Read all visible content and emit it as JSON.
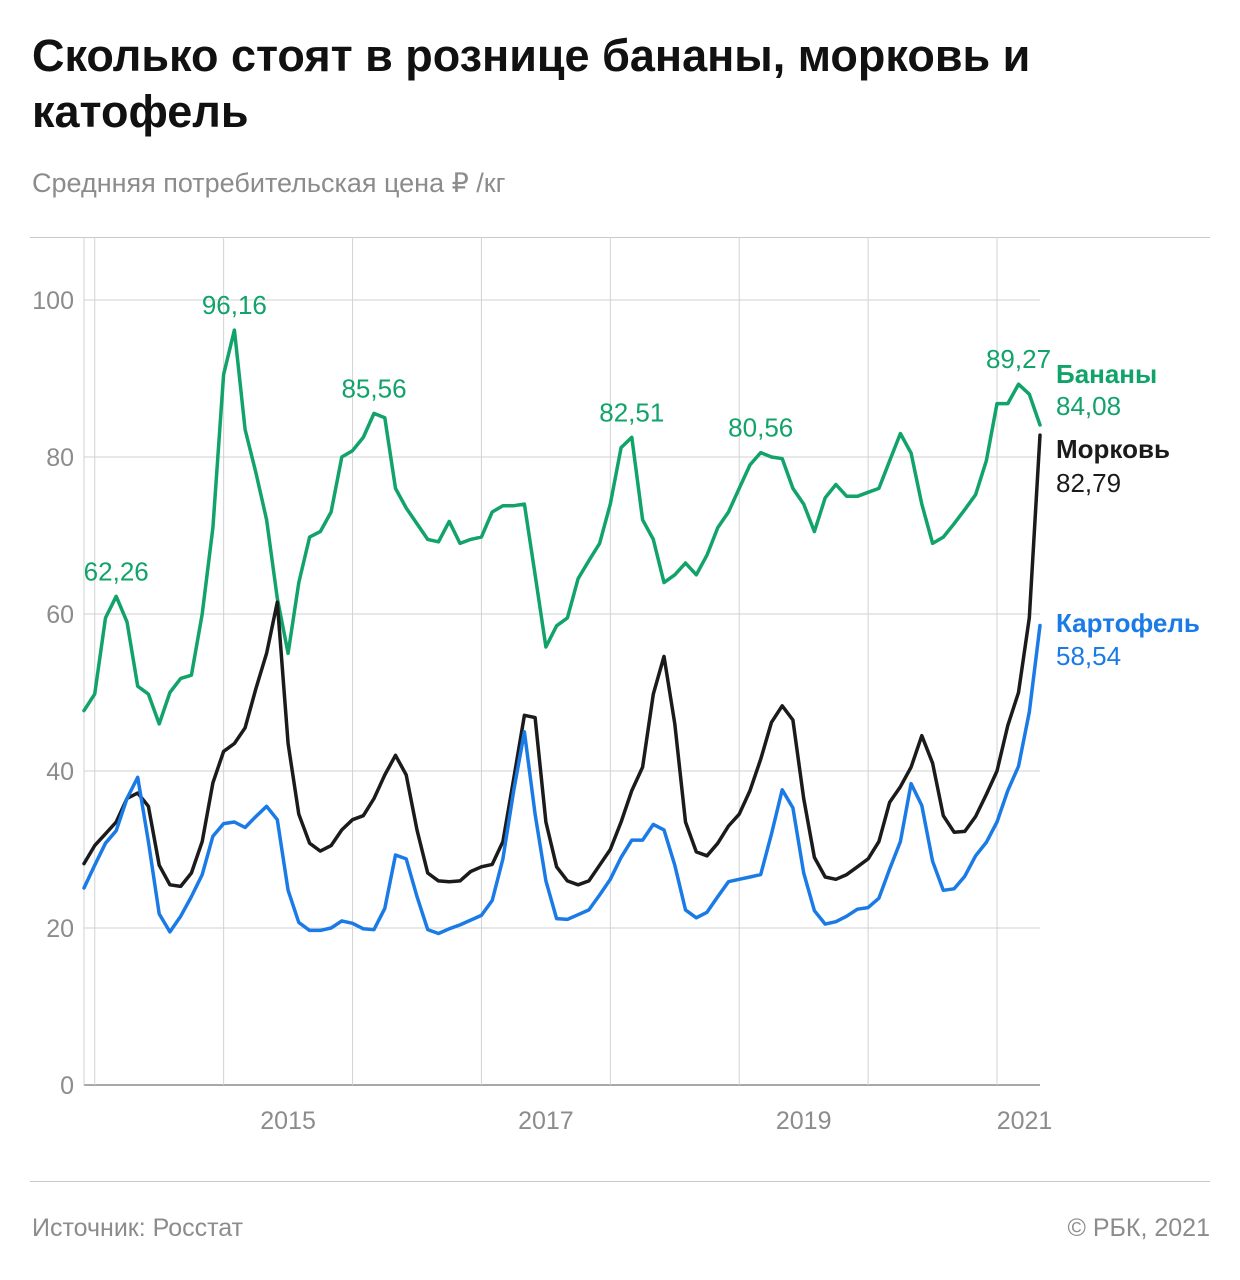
{
  "title": "Сколько стоят в рознице бананы, морковь и катофель",
  "subtitle": "Среднняя потребительская цена ₽ /кг",
  "source": "Источник: Росстат",
  "copyright": "© РБК, 2021",
  "colors": {
    "bananas": "#11a36a",
    "carrots": "#1b1b1b",
    "potatoes": "#1a7be6",
    "grid": "#d2d2d2",
    "axis": "#8c8c8c"
  },
  "chart_data": {
    "type": "line",
    "title": "Сколько стоят в рознице бананы, морковь и катофель",
    "ylabel": "Среднняя потребительская цена ₽ /кг",
    "xlabel": "",
    "ylim": [
      0,
      100
    ],
    "y_ticks": [
      0,
      20,
      40,
      60,
      80,
      100
    ],
    "x_ticks": [
      "2015",
      "2017",
      "2019",
      "2021"
    ],
    "grid": true,
    "x_start": "2013-12",
    "x_end": "2021-05",
    "series": [
      {
        "name": "Бананы",
        "end_value": "84,08",
        "values": [
          47.7,
          49.8,
          59.5,
          62.26,
          59.0,
          50.8,
          49.8,
          46.0,
          50.0,
          51.8,
          52.2,
          60.0,
          71.0,
          90.5,
          96.16,
          83.5,
          78.0,
          72.0,
          62.0,
          55.0,
          64.0,
          69.8,
          70.5,
          73.0,
          80.0,
          80.8,
          82.5,
          85.56,
          85.0,
          76.0,
          73.5,
          71.5,
          69.5,
          69.2,
          71.8,
          69.0,
          69.5,
          69.8,
          73.0,
          73.8,
          73.8,
          74.0,
          65.0,
          55.8,
          58.5,
          59.5,
          64.5,
          66.8,
          69.0,
          74.0,
          81.2,
          82.51,
          72.0,
          69.5,
          64.0,
          65.0,
          66.5,
          65.0,
          67.5,
          71.0,
          73.0,
          76.0,
          79.0,
          80.56,
          80.0,
          79.8,
          76.0,
          74.0,
          70.5,
          74.8,
          76.5,
          75.0,
          75.0,
          75.5,
          76.0,
          79.5,
          83.0,
          80.5,
          74.0,
          69.0,
          69.8,
          71.5,
          73.3,
          75.2,
          79.5,
          86.8,
          86.8,
          89.27,
          88.0,
          84.08
        ],
        "labels": [
          {
            "index": 3,
            "text": "62,26"
          },
          {
            "index": 14,
            "text": "96,16"
          },
          {
            "index": 27,
            "text": "85,56"
          },
          {
            "index": 51,
            "text": "82,51"
          },
          {
            "index": 63,
            "text": "80,56"
          },
          {
            "index": 87,
            "text": "89,27"
          }
        ]
      },
      {
        "name": "Морковь",
        "end_value": "82,79",
        "values": [
          28.2,
          30.5,
          32.0,
          33.5,
          36.5,
          37.2,
          35.5,
          28.0,
          25.5,
          25.3,
          27.0,
          31.0,
          38.5,
          42.5,
          43.5,
          45.5,
          50.5,
          55.0,
          61.5,
          43.5,
          34.5,
          30.8,
          29.8,
          30.5,
          32.5,
          33.8,
          34.3,
          36.5,
          39.5,
          42.0,
          39.5,
          32.5,
          27.0,
          26.0,
          25.9,
          26.0,
          27.2,
          27.8,
          28.1,
          31.0,
          39.0,
          47.1,
          46.8,
          33.5,
          27.8,
          26.0,
          25.5,
          26.0,
          28.0,
          30.0,
          33.5,
          37.5,
          40.5,
          49.8,
          54.6,
          46.0,
          33.5,
          29.7,
          29.2,
          30.8,
          33.0,
          34.5,
          37.5,
          41.5,
          46.2,
          48.3,
          46.5,
          36.5,
          29.0,
          26.5,
          26.2,
          26.8,
          27.8,
          28.8,
          31.0,
          36.0,
          38.0,
          40.5,
          44.5,
          41.0,
          34.3,
          32.2,
          32.3,
          34.2,
          37.0,
          40.0,
          45.8,
          50.0,
          59.5,
          82.79
        ]
      },
      {
        "name": "Картофель",
        "end_value": "58,54",
        "values": [
          25.1,
          28.0,
          30.8,
          32.4,
          36.5,
          39.2,
          31.0,
          21.8,
          19.5,
          21.5,
          24.0,
          26.8,
          31.7,
          33.3,
          33.5,
          32.8,
          34.2,
          35.5,
          33.8,
          24.8,
          20.7,
          19.7,
          19.7,
          20.0,
          20.9,
          20.6,
          19.9,
          19.8,
          22.5,
          29.3,
          28.8,
          24.0,
          19.8,
          19.3,
          19.9,
          20.4,
          21.0,
          21.6,
          23.5,
          28.8,
          37.5,
          45.0,
          34.5,
          26.0,
          21.2,
          21.1,
          21.7,
          22.3,
          24.2,
          26.2,
          29.0,
          31.2,
          31.2,
          33.2,
          32.5,
          28.0,
          22.3,
          21.3,
          22.0,
          24.0,
          25.9,
          26.2,
          26.5,
          26.8,
          32.0,
          37.6,
          35.3,
          27.0,
          22.2,
          20.5,
          20.8,
          21.5,
          22.4,
          22.6,
          23.8,
          27.5,
          31.0,
          38.4,
          35.6,
          28.5,
          24.8,
          25.0,
          26.6,
          29.2,
          30.9,
          33.5,
          37.5,
          40.6,
          47.5,
          58.54
        ]
      }
    ]
  }
}
